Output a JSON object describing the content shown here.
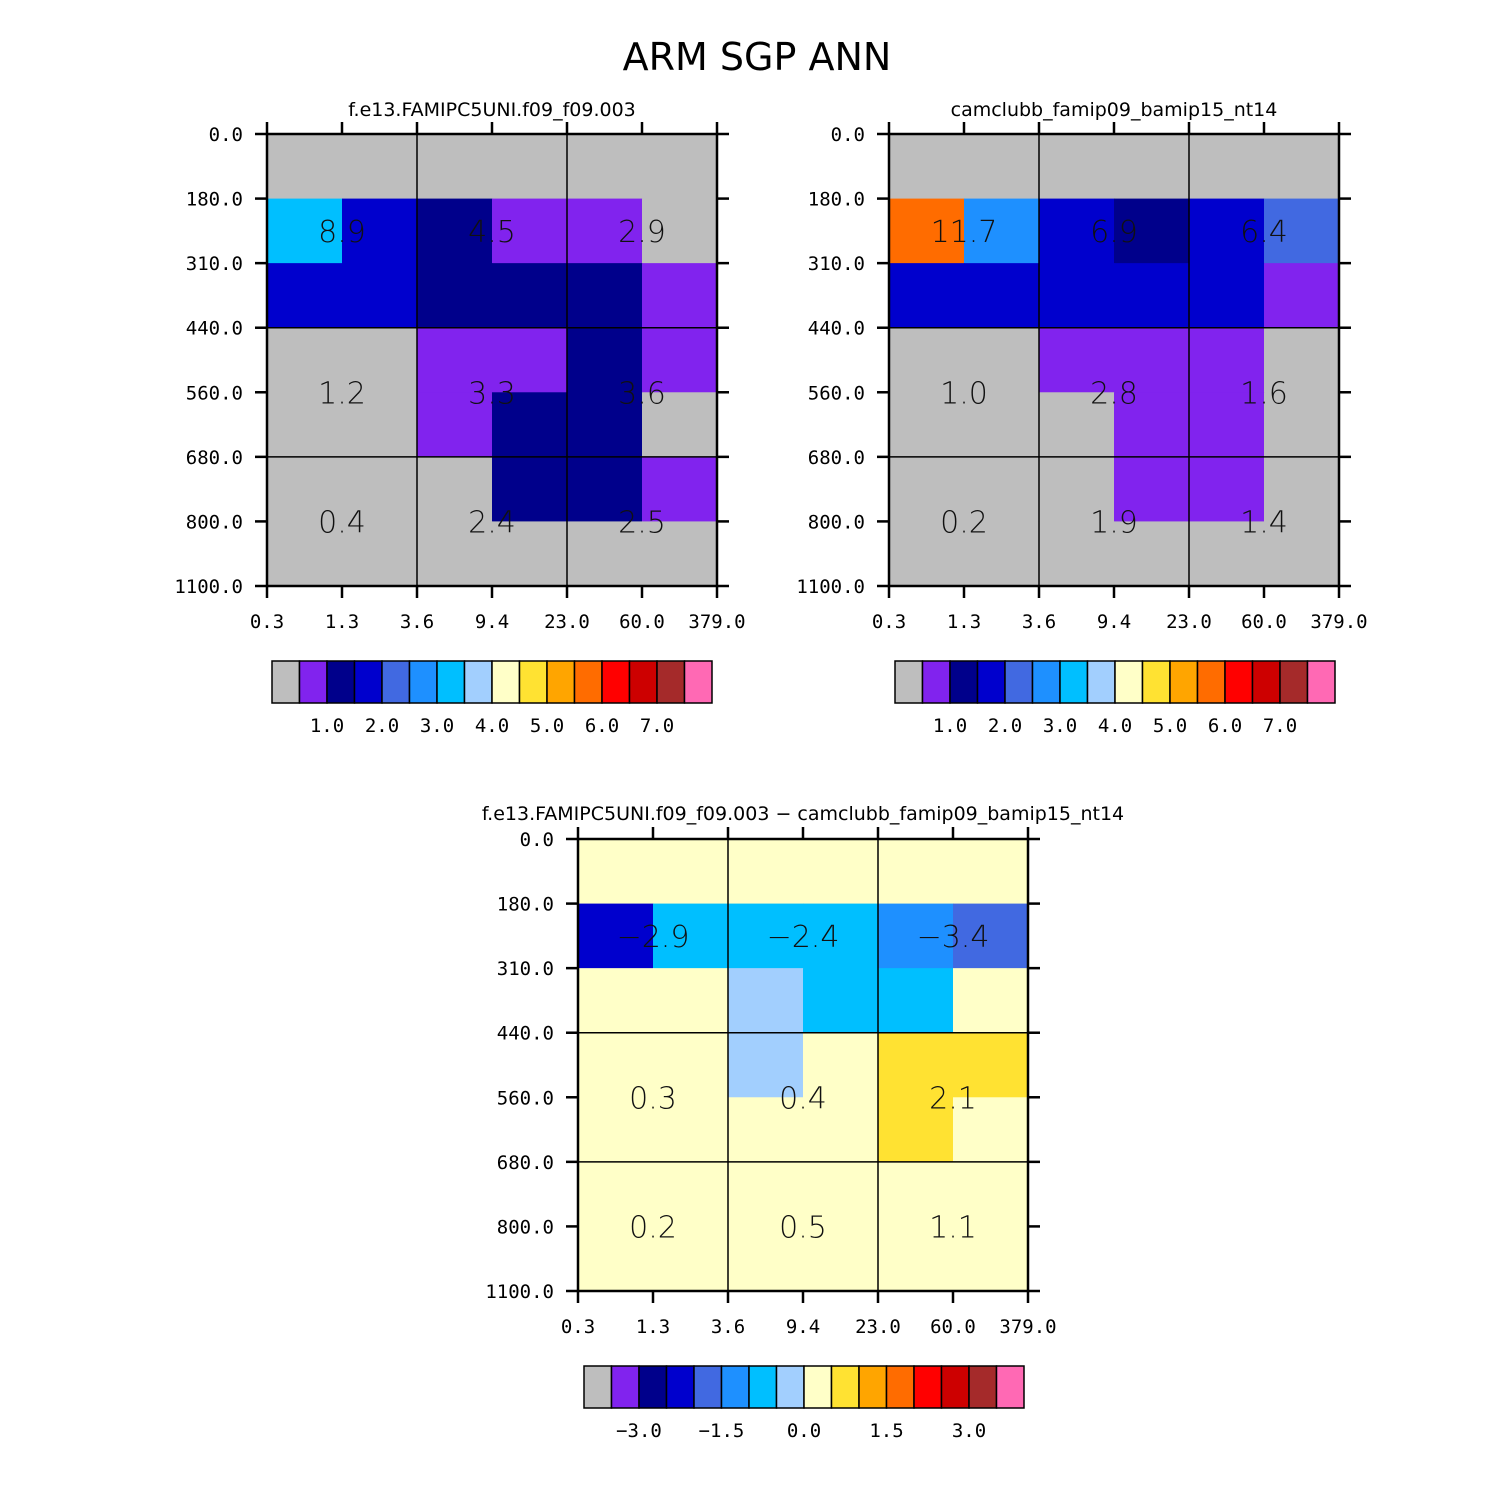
{
  "figure_title": "ARM SGP ANN",
  "colors": {
    "gray": "#BEBEBE",
    "violet": "#8123EE",
    "navy": "#00008B",
    "blue": "#0000CD",
    "royalblue": "#4169E1",
    "dodger": "#1E90FF",
    "skyblue": "#00BFFF",
    "lightblue": "#A2CFFE",
    "cream": "#FFFFC8",
    "gold": "#FFE232",
    "orange": "#FFA500",
    "darkorange": "#FF6C00",
    "red": "#FF0000",
    "darkred": "#CD0000",
    "maroon": "#A52A2A",
    "pink": "#FF69B4"
  },
  "chart_data": [
    {
      "type": "heatmap",
      "name": "model1",
      "title": "f.e13.FAMIPC5UNI.f09_f09.003",
      "x_ticks": [
        "0.3",
        "1.3",
        "3.6",
        "9.4",
        "23.0",
        "60.0",
        "379.0"
      ],
      "y_ticks": [
        "0.0",
        "180.0",
        "310.0",
        "440.0",
        "560.0",
        "680.0",
        "800.0",
        "1100.0"
      ],
      "cells": [
        [
          "gray",
          "gray",
          "gray",
          "gray",
          "gray",
          "gray"
        ],
        [
          "skyblue",
          "blue",
          "navy",
          "violet",
          "violet",
          "gray"
        ],
        [
          "blue",
          "blue",
          "navy",
          "navy",
          "navy",
          "violet"
        ],
        [
          "gray",
          "gray",
          "violet",
          "violet",
          "navy",
          "violet"
        ],
        [
          "gray",
          "gray",
          "violet",
          "navy",
          "navy",
          "gray"
        ],
        [
          "gray",
          "gray",
          "gray",
          "navy",
          "navy",
          "violet"
        ],
        [
          "gray",
          "gray",
          "gray",
          "gray",
          "gray",
          "gray"
        ]
      ],
      "block_values": [
        [
          "8.9",
          "4.5",
          "2.9"
        ],
        [
          "1.2",
          "3.3",
          "3.6"
        ],
        [
          "0.4",
          "2.4",
          "2.5"
        ]
      ],
      "colorbar": {
        "boxes": [
          "gray",
          "violet",
          "navy",
          "blue",
          "royalblue",
          "dodger",
          "skyblue",
          "lightblue",
          "cream",
          "gold",
          "orange",
          "darkorange",
          "red",
          "darkred",
          "maroon",
          "pink"
        ],
        "labels": [
          "1.0",
          "2.0",
          "3.0",
          "4.0",
          "5.0",
          "6.0",
          "7.0"
        ]
      }
    },
    {
      "type": "heatmap",
      "name": "model2",
      "title": "camclubb_famip09_bamip15_nt14",
      "x_ticks": [
        "0.3",
        "1.3",
        "3.6",
        "9.4",
        "23.0",
        "60.0",
        "379.0"
      ],
      "y_ticks": [
        "0.0",
        "180.0",
        "310.0",
        "440.0",
        "560.0",
        "680.0",
        "800.0",
        "1100.0"
      ],
      "cells": [
        [
          "gray",
          "gray",
          "gray",
          "gray",
          "gray",
          "gray"
        ],
        [
          "darkorange",
          "dodger",
          "blue",
          "navy",
          "blue",
          "royalblue"
        ],
        [
          "blue",
          "blue",
          "blue",
          "blue",
          "blue",
          "violet"
        ],
        [
          "gray",
          "gray",
          "violet",
          "violet",
          "violet",
          "gray"
        ],
        [
          "gray",
          "gray",
          "gray",
          "violet",
          "violet",
          "gray"
        ],
        [
          "gray",
          "gray",
          "gray",
          "violet",
          "violet",
          "gray"
        ],
        [
          "gray",
          "gray",
          "gray",
          "gray",
          "gray",
          "gray"
        ]
      ],
      "block_values": [
        [
          "11.7",
          "6.9",
          "6.4"
        ],
        [
          "1.0",
          "2.8",
          "1.6"
        ],
        [
          "0.2",
          "1.9",
          "1.4"
        ]
      ],
      "colorbar": {
        "boxes": [
          "gray",
          "violet",
          "navy",
          "blue",
          "royalblue",
          "dodger",
          "skyblue",
          "lightblue",
          "cream",
          "gold",
          "orange",
          "darkorange",
          "red",
          "darkred",
          "maroon",
          "pink"
        ],
        "labels": [
          "1.0",
          "2.0",
          "3.0",
          "4.0",
          "5.0",
          "6.0",
          "7.0"
        ]
      }
    },
    {
      "type": "heatmap",
      "name": "difference",
      "title": "f.e13.FAMIPC5UNI.f09_f09.003 − camclubb_famip09_bamip15_nt14",
      "x_ticks": [
        "0.3",
        "1.3",
        "3.6",
        "9.4",
        "23.0",
        "60.0",
        "379.0"
      ],
      "y_ticks": [
        "0.0",
        "180.0",
        "310.0",
        "440.0",
        "560.0",
        "680.0",
        "800.0",
        "1100.0"
      ],
      "cells": [
        [
          "cream",
          "cream",
          "cream",
          "cream",
          "cream",
          "cream"
        ],
        [
          "blue",
          "skyblue",
          "skyblue",
          "skyblue",
          "dodger",
          "royalblue"
        ],
        [
          "cream",
          "cream",
          "lightblue",
          "skyblue",
          "skyblue",
          "cream"
        ],
        [
          "cream",
          "cream",
          "lightblue",
          "cream",
          "gold",
          "gold"
        ],
        [
          "cream",
          "cream",
          "cream",
          "cream",
          "gold",
          "cream"
        ],
        [
          "cream",
          "cream",
          "cream",
          "cream",
          "cream",
          "cream"
        ],
        [
          "cream",
          "cream",
          "cream",
          "cream",
          "cream",
          "cream"
        ]
      ],
      "block_values": [
        [
          "−2.9",
          "−2.4",
          "−3.4"
        ],
        [
          "0.3",
          "0.4",
          "2.1"
        ],
        [
          "0.2",
          "0.5",
          "1.1"
        ]
      ],
      "colorbar": {
        "boxes": [
          "gray",
          "violet",
          "navy",
          "blue",
          "royalblue",
          "dodger",
          "skyblue",
          "lightblue",
          "cream",
          "gold",
          "orange",
          "darkorange",
          "red",
          "darkred",
          "maroon",
          "pink"
        ],
        "labels": [
          "−3.0",
          "−1.5",
          "0.0",
          "1.5",
          "3.0"
        ]
      }
    }
  ]
}
